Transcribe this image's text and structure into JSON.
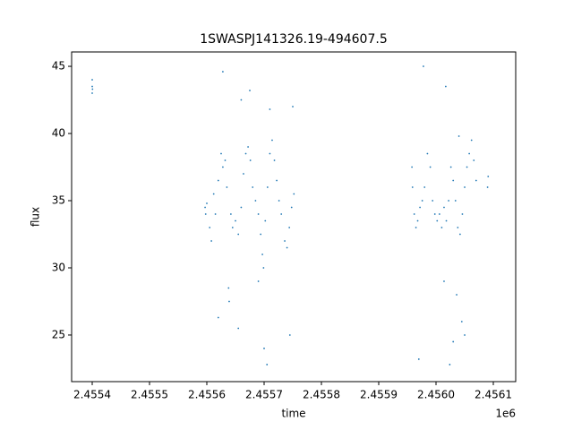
{
  "chart_data": {
    "type": "scatter",
    "title": "1SWASPJ141326.19-494607.5",
    "x_label": "time",
    "y_label": "flux",
    "x_offset": "1e6",
    "color": "#1f77b4",
    "xlim": [
      2455364.06,
      2456139.06
    ],
    "ylim": [
      21.53,
      46.07
    ],
    "xticks": [
      {
        "value": 2455400,
        "label": "2.4554"
      },
      {
        "value": 2455500,
        "label": "2.4555"
      },
      {
        "value": 2455600,
        "label": "2.4556"
      },
      {
        "value": 2455700,
        "label": "2.4557"
      },
      {
        "value": 2455800,
        "label": "2.4558"
      },
      {
        "value": 2455900,
        "label": "2.4559"
      },
      {
        "value": 2456000,
        "label": "2.4560"
      },
      {
        "value": 2456100,
        "label": "2.4561"
      }
    ],
    "yticks": [
      25,
      30,
      35,
      40,
      45
    ],
    "x": [
      2455400,
      2455400,
      2455400,
      2455400.5,
      2455597,
      2455598,
      2455600,
      2455605,
      2455608,
      2455612,
      2455615,
      2455620,
      2455625,
      2455628,
      2455632,
      2455635,
      2455638,
      2455639,
      2455642,
      2455645,
      2455650,
      2455655,
      2455660,
      2455664,
      2455668,
      2455672,
      2455676,
      2455680,
      2455685,
      2455690,
      2455694,
      2455697,
      2455699,
      2455702,
      2455706,
      2455710,
      2455714,
      2455718,
      2455722,
      2455726,
      2455730,
      2455736,
      2455740,
      2455744,
      2455748,
      2455752,
      2455628,
      2455660,
      2455620,
      2455690,
      2455700,
      2455705,
      2455655,
      2455745,
      2455710,
      2455750,
      2455675,
      2455958,
      2455959,
      2455962,
      2455965,
      2455968,
      2455972,
      2455976,
      2455980,
      2455985,
      2455990,
      2455994,
      2455998,
      2456002,
      2456006,
      2456010,
      2456014,
      2456018,
      2456022,
      2456026,
      2456030,
      2456034,
      2456038,
      2456042,
      2456046,
      2456050,
      2456054,
      2456058,
      2456062,
      2456066,
      2456070,
      2456090,
      2456091,
      2455978,
      2455970,
      2456017,
      2456024,
      2456030,
      2456040,
      2456045,
      2456014,
      2456050,
      2456036
    ],
    "values": [
      43.0,
      43.5,
      44.0,
      43.3,
      34.5,
      34.0,
      34.8,
      33.0,
      32.0,
      35.5,
      34.0,
      36.5,
      38.5,
      37.5,
      38.0,
      36.0,
      28.5,
      27.5,
      34.0,
      33.0,
      33.5,
      32.5,
      34.5,
      37.0,
      38.5,
      39.0,
      38.0,
      36.0,
      35.0,
      34.0,
      32.5,
      31.0,
      30.0,
      33.5,
      36.0,
      38.5,
      39.5,
      38.0,
      36.5,
      35.0,
      34.0,
      32.0,
      31.5,
      33.0,
      34.5,
      35.5,
      44.6,
      42.5,
      26.3,
      29.0,
      24.0,
      22.8,
      25.5,
      25.0,
      41.8,
      42.0,
      43.2,
      37.5,
      36.0,
      34.0,
      33.0,
      33.5,
      34.5,
      35.0,
      36.0,
      38.5,
      37.5,
      35.0,
      34.0,
      33.5,
      34.0,
      33.0,
      34.5,
      33.5,
      35.0,
      37.5,
      36.5,
      35.0,
      33.0,
      32.5,
      34.0,
      36.0,
      37.5,
      38.5,
      39.5,
      38.0,
      36.5,
      36.0,
      36.8,
      45.0,
      23.2,
      43.5,
      22.8,
      24.5,
      39.8,
      26.0,
      29.0,
      25.0,
      28.0
    ]
  }
}
